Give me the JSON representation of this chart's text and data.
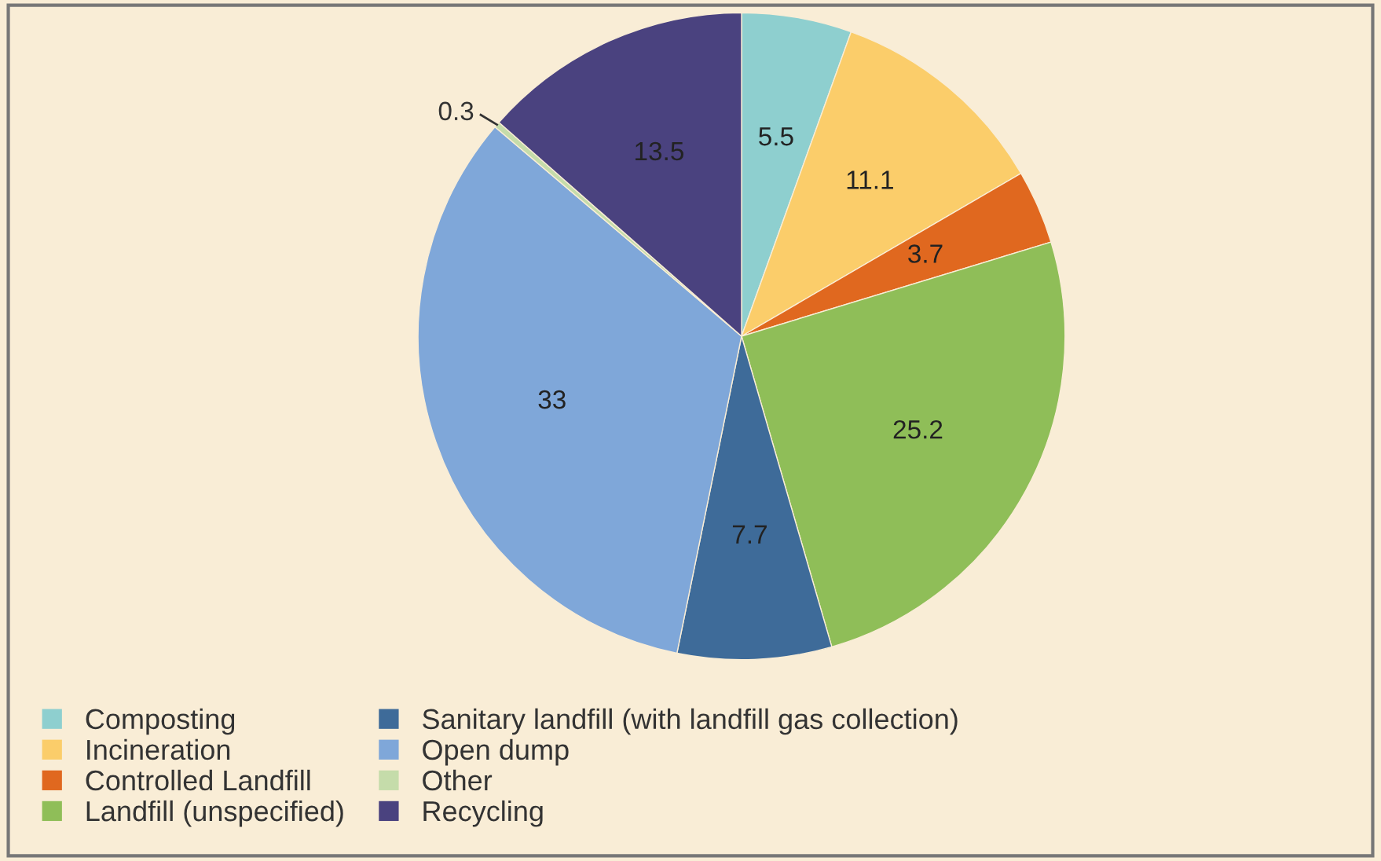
{
  "chart_data": {
    "type": "pie",
    "categories": [
      "Composting",
      "Incineration",
      "Controlled Landfill",
      "Landfill (unspecified)",
      "Sanitary landfill (with landfill gas collection)",
      "Open dump",
      "Other",
      "Recycling"
    ],
    "values": [
      5.5,
      11.1,
      3.7,
      25.2,
      7.7,
      33,
      0.3,
      13.5
    ],
    "colors": [
      "#8ecfcf",
      "#fbcd6a",
      "#e0681f",
      "#8fbe58",
      "#3e6b99",
      "#7fa7d9",
      "#c5dcaa",
      "#4a427f"
    ],
    "data_labels": true,
    "legend": "bottom left"
  }
}
